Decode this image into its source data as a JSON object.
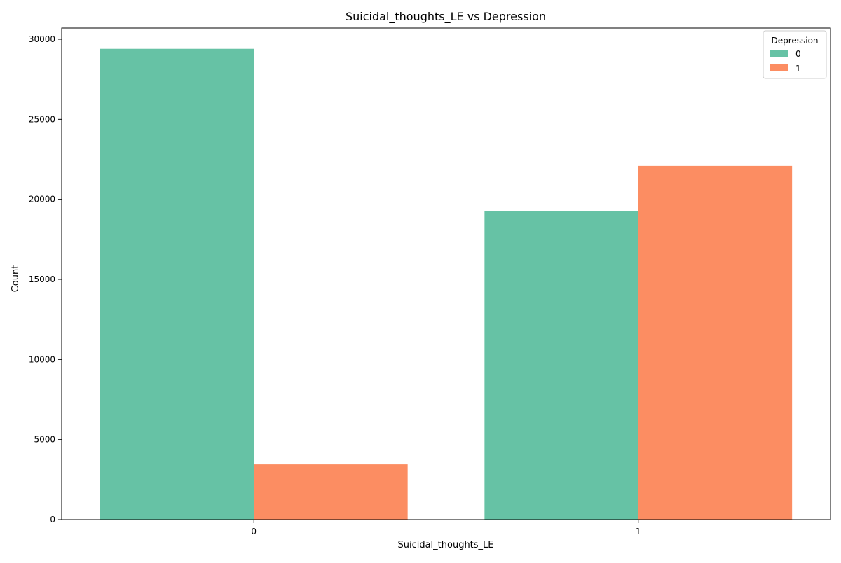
{
  "chart_data": {
    "type": "bar",
    "title": "Suicidal_thoughts_LE vs Depression",
    "xlabel": "Suicidal_thoughts_LE",
    "ylabel": "Count",
    "categories": [
      "0",
      "1"
    ],
    "series": [
      {
        "name": "0",
        "color": "#66c2a5",
        "values": [
          29400,
          19280
        ]
      },
      {
        "name": "1",
        "color": "#fc8d62",
        "values": [
          3450,
          22090
        ]
      }
    ],
    "ylim": [
      0,
      30700
    ],
    "yticks": [
      0,
      5000,
      10000,
      15000,
      20000,
      25000,
      30000
    ],
    "grid": false,
    "legend": {
      "title": "Depression",
      "position": "top-right"
    }
  }
}
